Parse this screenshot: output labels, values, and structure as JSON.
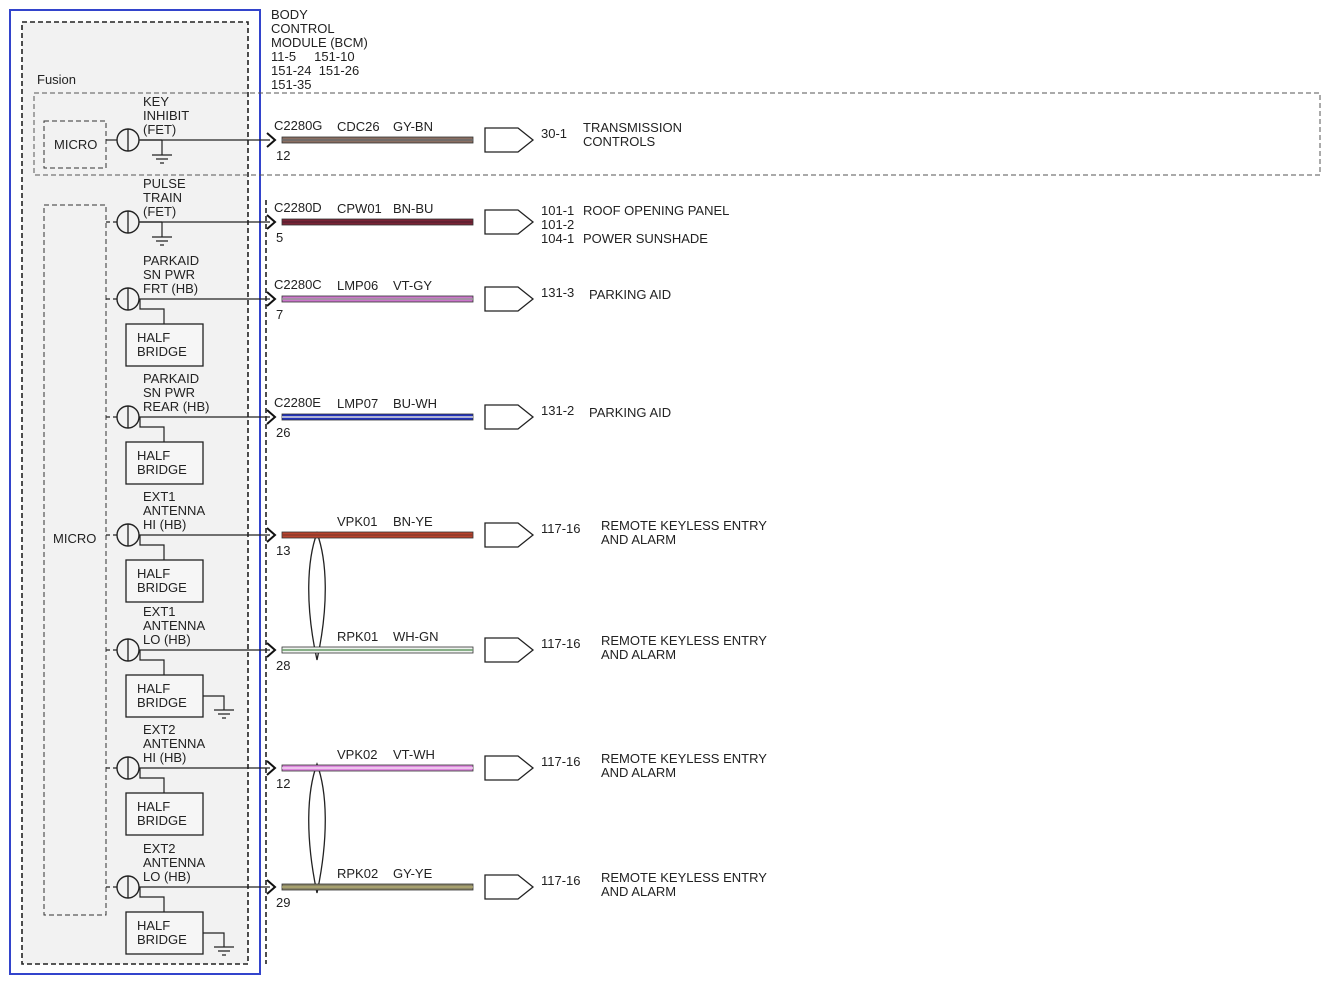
{
  "module": {
    "name_lines": [
      "BODY",
      "CONTROL",
      "MODULE (BCM)"
    ],
    "connector_lines": [
      "11-5     151-10",
      "151-24  151-26",
      "151-35"
    ],
    "variant_label": "Fusion",
    "micro_label": "MICRO"
  },
  "half_bridge_lines": [
    "HALF",
    "BRIDGE"
  ],
  "circuits": [
    {
      "output_lines": [
        "KEY",
        "INHIBIT",
        "(FET)"
      ],
      "connector": "C2280G",
      "pin": "12",
      "circuit": "CDC26",
      "color_code": "GY-BN",
      "wire_color": "#8a6f62",
      "wire_stripe": "#6a6a6a",
      "destination_pins": [
        "30-1"
      ],
      "destination_lines": [
        "TRANSMISSION",
        "CONTROLS"
      ],
      "half_bridge": false
    },
    {
      "output_lines": [
        "PULSE",
        "TRAIN",
        "(FET)"
      ],
      "connector": "C2280D",
      "pin": "5",
      "circuit": "CPW01",
      "color_code": "BN-BU",
      "wire_color": "#7a2436",
      "wire_stripe": "#5a2030",
      "destination_pins": [
        "101-1",
        "101-2",
        "104-1"
      ],
      "destination_lines": [
        "ROOF OPENING PANEL",
        "POWER SUNSHADE"
      ],
      "half_bridge": false
    },
    {
      "output_lines": [
        "PARKAID",
        "SN PWR",
        "FRT (HB)"
      ],
      "connector": "C2280C",
      "pin": "7",
      "circuit": "LMP06",
      "color_code": "VT-GY",
      "wire_color": "#cc77cc",
      "wire_stripe": "#999999",
      "destination_pins": [
        "131-3"
      ],
      "destination_lines": [
        "PARKING AID"
      ],
      "half_bridge": true
    },
    {
      "output_lines": [
        "PARKAID",
        "SN PWR",
        "REAR (HB)"
      ],
      "connector": "C2280E",
      "pin": "26",
      "circuit": "LMP07",
      "color_code": "BU-WH",
      "wire_color": "#2233bb",
      "wire_stripe": "#dddddd",
      "destination_pins": [
        "131-2"
      ],
      "destination_lines": [
        "PARKING AID"
      ],
      "half_bridge": true
    },
    {
      "output_lines": [
        "EXT1",
        "ANTENNA",
        "HI (HB)"
      ],
      "connector": "",
      "pin": "13",
      "circuit": "VPK01",
      "color_code": "BN-YE",
      "wire_color": "#b8432e",
      "wire_stripe": "#8a3a2a",
      "destination_pins": [
        "117-16"
      ],
      "destination_lines": [
        "REMOTE KEYLESS ENTRY",
        "AND ALARM"
      ],
      "half_bridge": true
    },
    {
      "output_lines": [
        "EXT1",
        "ANTENNA",
        "LO (HB)"
      ],
      "connector": "",
      "pin": "28",
      "circuit": "RPK01",
      "color_code": "WH-GN",
      "wire_color": "#eef2ee",
      "wire_stripe": "#669966",
      "destination_pins": [
        "117-16"
      ],
      "destination_lines": [
        "REMOTE KEYLESS ENTRY",
        "AND ALARM"
      ],
      "half_bridge": true
    },
    {
      "output_lines": [
        "EXT2",
        "ANTENNA",
        "HI (HB)"
      ],
      "connector": "",
      "pin": "12",
      "circuit": "VPK02",
      "color_code": "VT-WH",
      "wire_color": "#dd88dd",
      "wire_stripe": "#f2d8f2",
      "destination_pins": [
        "117-16"
      ],
      "destination_lines": [
        "REMOTE KEYLESS ENTRY",
        "AND ALARM"
      ],
      "half_bridge": true
    },
    {
      "output_lines": [
        "EXT2",
        "ANTENNA",
        "LO (HB)"
      ],
      "connector": "",
      "pin": "29",
      "circuit": "RPK02",
      "color_code": "GY-YE",
      "wire_color": "#8a8566",
      "wire_stripe": "#b0aa70",
      "destination_pins": [
        "117-16"
      ],
      "destination_lines": [
        "REMOTE KEYLESS ENTRY",
        "AND ALARM"
      ],
      "half_bridge": true
    }
  ]
}
